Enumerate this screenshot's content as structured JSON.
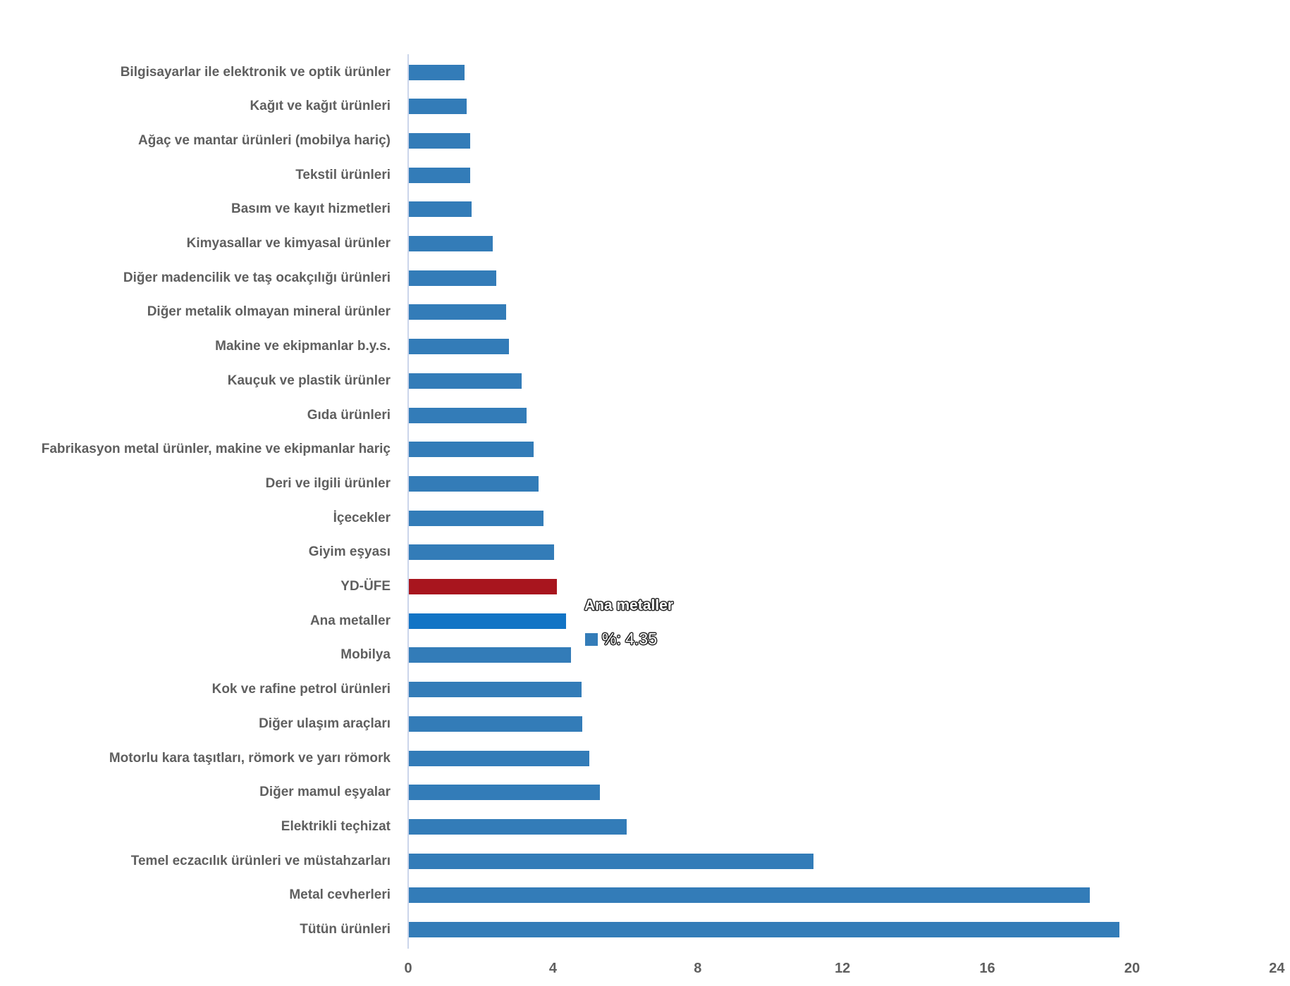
{
  "chart_data": {
    "type": "bar",
    "orientation": "horizontal",
    "title": "",
    "xlabel": "",
    "ylabel": "",
    "xlim": [
      0,
      24
    ],
    "x_ticks": [
      0,
      4,
      8,
      12,
      16,
      20,
      24
    ],
    "grid": false,
    "legend": false,
    "categories": [
      "Bilgisayarlar ile elektronik ve optik ürünler",
      "Kağıt ve kağıt ürünleri",
      "Ağaç ve mantar ürünleri (mobilya hariç)",
      "Tekstil ürünleri",
      "Basım ve kayıt hizmetleri",
      "Kimyasallar ve kimyasal ürünler",
      "Diğer madencilik ve taş ocakçılığı ürünleri",
      "Diğer metalik olmayan mineral ürünler",
      "Makine ve ekipmanlar b.y.s.",
      "Kauçuk ve plastik ürünler",
      "Gıda ürünleri",
      "Fabrikasyon metal ürünler, makine ve ekipmanlar hariç",
      "Deri ve ilgili ürünler",
      "İçecekler",
      "Giyim eşyası",
      "YD-ÜFE",
      "Ana metaller",
      "Mobilya",
      "Kok ve rafine petrol ürünleri",
      "Diğer ulaşım araçları",
      "Motorlu kara taşıtları, römork ve yarı römork",
      "Diğer mamul eşyalar",
      "Elektrikli teçhizat",
      "Temel eczacılık ürünleri ve müstahzarları",
      "Metal cevherleri",
      "Tütün ürünleri"
    ],
    "values": [
      1.54,
      1.6,
      1.69,
      1.7,
      1.73,
      2.32,
      2.41,
      2.69,
      2.77,
      3.11,
      3.25,
      3.45,
      3.58,
      3.72,
      4.01,
      4.08,
      4.35,
      4.48,
      4.77,
      4.79,
      4.99,
      5.28,
      6.02,
      11.18,
      18.81,
      19.63
    ],
    "bar_color_default": "#337CB8",
    "bar_color_red": "#A8151E",
    "bar_color_highlight": "#1274C5",
    "red_bar_index": 15,
    "highlight_bar_index": 16
  },
  "axis": {
    "line_color": "#CCD6EB",
    "label_color": "#5f5f5f"
  },
  "tooltip": {
    "title": "Ana metaller",
    "value_label": "%: 4.35",
    "marker_color": "#337CB8"
  }
}
